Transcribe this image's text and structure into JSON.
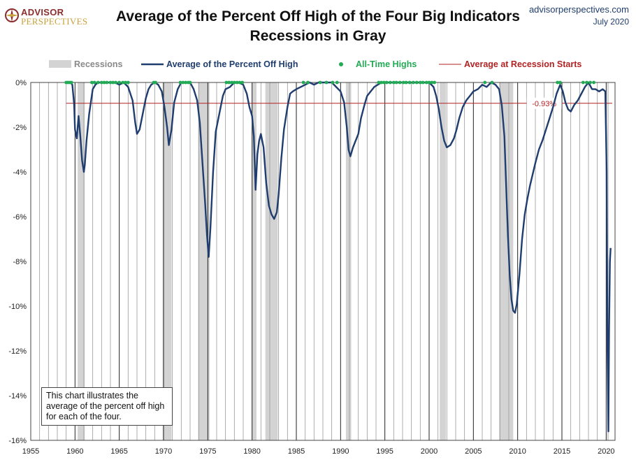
{
  "header": {
    "brand_name": "ADVISOR",
    "brand_sub": "PERSPECTIVES",
    "title_line1": "Average of the Percent Off High of the Four Big Indicators",
    "title_line2": "Recessions in Gray",
    "website": "advisorperspectives.com",
    "date": "July 2020"
  },
  "colors": {
    "series": "#1f3d6e",
    "highs": "#22aa55",
    "avg_line": "#b22222",
    "avg_label": "#b22222",
    "recession": "#d3d3d3",
    "brand": "#8b2d2d"
  },
  "note": "This chart illustrates the average of the percent off high for each of the four.",
  "chart_data": {
    "type": "line",
    "xlim": [
      1955,
      2021
    ],
    "ylim": [
      -16,
      0
    ],
    "x_ticks": [
      1955,
      1960,
      1965,
      1970,
      1975,
      1980,
      1985,
      1990,
      1995,
      2000,
      2005,
      2010,
      2015,
      2020
    ],
    "y_ticks": [
      0,
      -2,
      -4,
      -6,
      -8,
      -10,
      -12,
      -14,
      -16
    ],
    "y_tick_labels": [
      "0%",
      "-2%",
      "-4%",
      "-6%",
      "-8%",
      "-10%",
      "-12%",
      "-14%",
      "-16%"
    ],
    "grid": "vertical yearly",
    "legend": {
      "placement": "top",
      "entries": [
        "Recessions",
        "Average of the Percent Off High",
        "All-Time Highs",
        "Average at Recession Starts"
      ]
    },
    "recessions": [
      [
        1960.3,
        1961.1
      ],
      [
        1969.9,
        1970.9
      ],
      [
        1973.9,
        1975.2
      ],
      [
        1980.0,
        1980.5
      ],
      [
        1981.5,
        1982.9
      ],
      [
        1990.6,
        1991.2
      ],
      [
        2001.2,
        2001.9
      ],
      [
        2007.9,
        2009.5
      ],
      [
        2020.1,
        2020.3
      ]
    ],
    "avg_at_recession_starts": {
      "value": -0.93,
      "label": "-0.93%"
    },
    "series": [
      {
        "name": "Average of the Percent Off High",
        "x": [
          1959.0,
          1959.5,
          1959.7,
          1959.9,
          1960.0,
          1960.2,
          1960.4,
          1960.6,
          1960.8,
          1961.0,
          1961.1,
          1961.3,
          1961.6,
          1962.0,
          1962.3,
          1962.6,
          1963.0,
          1963.5,
          1964.0,
          1964.5,
          1965.0,
          1965.5,
          1966.0,
          1966.5,
          1966.8,
          1967.0,
          1967.3,
          1967.6,
          1968.0,
          1968.3,
          1968.6,
          1969.0,
          1969.4,
          1969.8,
          1970.1,
          1970.4,
          1970.6,
          1970.9,
          1971.2,
          1971.6,
          1972.0,
          1972.5,
          1973.0,
          1973.4,
          1973.8,
          1974.1,
          1974.4,
          1974.7,
          1974.9,
          1975.1,
          1975.3,
          1975.6,
          1975.9,
          1976.3,
          1976.7,
          1977.0,
          1977.5,
          1978.0,
          1978.5,
          1979.0,
          1979.4,
          1979.7,
          1980.0,
          1980.2,
          1980.4,
          1980.6,
          1980.8,
          1981.0,
          1981.3,
          1981.6,
          1981.9,
          1982.2,
          1982.5,
          1982.8,
          1983.0,
          1983.3,
          1983.6,
          1984.0,
          1984.3,
          1984.6,
          1985.0,
          1985.5,
          1986.0,
          1986.5,
          1987.0,
          1987.5,
          1988.0,
          1988.5,
          1989.0,
          1989.5,
          1990.0,
          1990.4,
          1990.7,
          1990.9,
          1991.1,
          1991.4,
          1991.7,
          1992.0,
          1992.3,
          1992.7,
          1993.0,
          1993.4,
          1993.8,
          1994.2,
          1994.6,
          1995.0,
          1995.5,
          1996.0,
          1996.5,
          1997.0,
          1997.5,
          1998.0,
          1998.5,
          1999.0,
          1999.5,
          2000.0,
          2000.5,
          2000.8,
          2001.1,
          2001.4,
          2001.7,
          2002.0,
          2002.4,
          2002.8,
          2003.1,
          2003.4,
          2003.8,
          2004.2,
          2004.6,
          2005.0,
          2005.5,
          2006.0,
          2006.5,
          2007.0,
          2007.5,
          2007.9,
          2008.2,
          2008.5,
          2008.7,
          2008.9,
          2009.1,
          2009.3,
          2009.5,
          2009.7,
          2009.9,
          2010.2,
          2010.5,
          2010.8,
          2011.1,
          2011.4,
          2011.7,
          2012.0,
          2012.4,
          2012.8,
          2013.2,
          2013.6,
          2014.0,
          2014.4,
          2014.8,
          2015.1,
          2015.4,
          2015.7,
          2016.0,
          2016.4,
          2016.8,
          2017.2,
          2017.6,
          2018.0,
          2018.4,
          2018.8,
          2019.2,
          2019.6,
          2019.9,
          2020.05,
          2020.15,
          2020.25,
          2020.33,
          2020.42,
          2020.5
        ],
        "y": [
          0,
          0,
          -0.1,
          -1.0,
          -2.1,
          -2.5,
          -1.5,
          -2.4,
          -3.5,
          -4.0,
          -3.7,
          -2.6,
          -1.4,
          -0.3,
          -0.1,
          0,
          0,
          0,
          0,
          0,
          -0.1,
          0,
          -0.2,
          -0.8,
          -1.8,
          -2.3,
          -2.1,
          -1.5,
          -0.7,
          -0.3,
          -0.1,
          0,
          -0.1,
          -0.4,
          -1.1,
          -2.0,
          -2.8,
          -2.1,
          -0.9,
          -0.3,
          0,
          0,
          0,
          -0.3,
          -0.8,
          -1.8,
          -3.6,
          -5.4,
          -6.8,
          -7.8,
          -6.5,
          -4.0,
          -2.2,
          -1.4,
          -0.6,
          -0.3,
          -0.2,
          0,
          0,
          -0.1,
          -0.5,
          -1.1,
          -1.5,
          -2.4,
          -4.8,
          -3.2,
          -2.6,
          -2.3,
          -2.9,
          -4.5,
          -5.5,
          -5.9,
          -6.1,
          -5.8,
          -5.0,
          -3.4,
          -2.1,
          -1.1,
          -0.5,
          -0.4,
          -0.3,
          -0.2,
          -0.1,
          0,
          -0.1,
          0,
          0,
          0,
          0,
          -0.2,
          -0.4,
          -0.9,
          -2.0,
          -3.0,
          -3.3,
          -2.9,
          -2.6,
          -2.3,
          -1.6,
          -1.0,
          -0.6,
          -0.4,
          -0.2,
          -0.1,
          0,
          0,
          0,
          0,
          0,
          0,
          0,
          0,
          0,
          0,
          0,
          0,
          -0.2,
          -0.6,
          -1.2,
          -2.0,
          -2.6,
          -2.9,
          -2.8,
          -2.5,
          -2.1,
          -1.6,
          -1.1,
          -0.8,
          -0.6,
          -0.4,
          -0.3,
          -0.1,
          -0.2,
          0,
          -0.1,
          -0.3,
          -1.0,
          -2.4,
          -4.6,
          -6.8,
          -8.6,
          -9.7,
          -10.2,
          -10.3,
          -9.9,
          -8.6,
          -7.0,
          -5.9,
          -5.2,
          -4.6,
          -4.1,
          -3.6,
          -3.0,
          -2.6,
          -2.1,
          -1.6,
          -1.1,
          -0.5,
          -0.1,
          -0.4,
          -0.9,
          -1.2,
          -1.3,
          -1.0,
          -0.8,
          -0.5,
          -0.2,
          0,
          -0.3,
          -0.3,
          -0.4,
          -0.3,
          -0.4,
          -4.0,
          -12.0,
          -15.6,
          -11.0,
          -8.0,
          -7.4
        ]
      },
      {
        "name": "All-Time Highs",
        "x": [
          1959.0,
          1959.2,
          1959.4,
          1959.6,
          1961.9,
          1962.2,
          1962.6,
          1963.0,
          1963.3,
          1963.6,
          1964.0,
          1964.3,
          1964.6,
          1965.0,
          1965.4,
          1965.7,
          1966.0,
          1968.9,
          1969.1,
          1971.9,
          1972.2,
          1972.5,
          1972.8,
          1973.0,
          1977.1,
          1977.4,
          1977.7,
          1978.0,
          1978.3,
          1978.6,
          1978.9,
          1985.8,
          1986.3,
          1987.7,
          1988.4,
          1989.1,
          1989.6,
          1994.3,
          1994.6,
          1994.9,
          1995.2,
          1995.6,
          1996.0,
          1996.3,
          1996.7,
          1997.1,
          1997.4,
          1997.8,
          1998.2,
          1998.6,
          1999.0,
          1999.3,
          1999.7,
          2000.0,
          2000.3,
          2000.6,
          2006.3,
          2007.1,
          2014.5,
          2014.8,
          2017.4,
          2017.8,
          2018.2,
          2018.6
        ],
        "y": [
          0,
          0,
          0,
          0,
          0,
          0,
          0,
          0,
          0,
          0,
          0,
          0,
          0,
          0,
          0,
          0,
          0,
          0,
          0,
          0,
          0,
          0,
          0,
          0,
          0,
          0,
          0,
          0,
          0,
          0,
          0,
          0,
          0,
          0,
          0,
          0,
          0,
          0,
          0,
          0,
          0,
          0,
          0,
          0,
          0,
          0,
          0,
          0,
          0,
          0,
          0,
          0,
          0,
          0,
          0,
          0,
          0,
          0,
          0,
          0,
          0,
          0,
          0,
          0
        ]
      }
    ]
  }
}
